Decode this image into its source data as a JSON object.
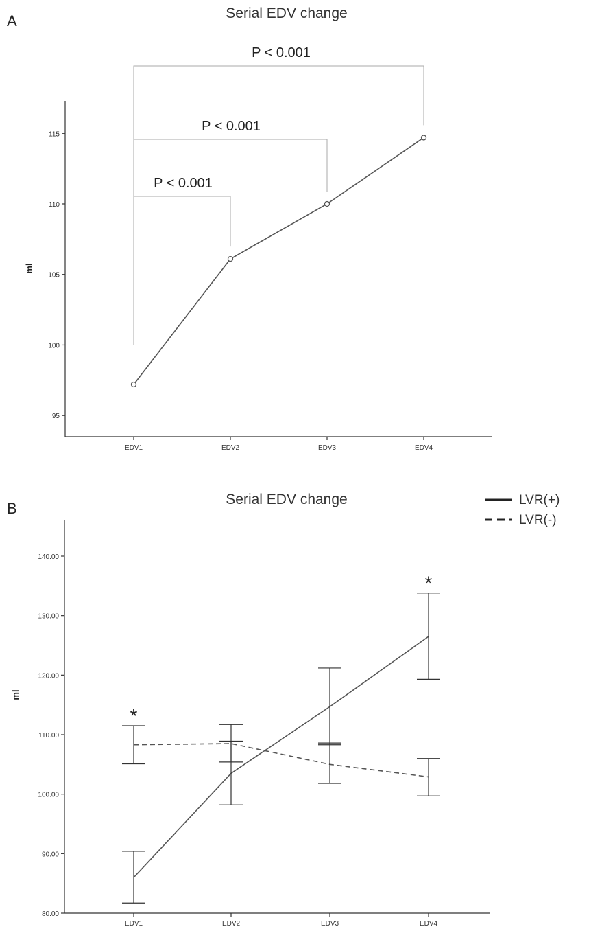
{
  "chart_data": [
    {
      "type": "line",
      "panel": "A",
      "title": "Serial EDV change",
      "ylabel": "ml",
      "xlabel": "",
      "categories": [
        "EDV1",
        "EDV2",
        "EDV3",
        "EDV4"
      ],
      "values": [
        97.2,
        106.1,
        110.0,
        114.7
      ],
      "ylim": [
        93.5,
        117.3
      ],
      "yticks": [
        "95",
        "100",
        "105",
        "110",
        "115"
      ],
      "ytick_values": [
        95,
        100,
        105,
        110,
        115
      ],
      "annotations": [
        {
          "text": "P < 0.001",
          "from": "EDV1",
          "to": "EDV2"
        },
        {
          "text": "P < 0.001",
          "from": "EDV1",
          "to": "EDV3"
        },
        {
          "text": "P < 0.001",
          "from": "EDV1",
          "to": "EDV4"
        }
      ],
      "grid": false,
      "colors": {
        "line": "#555555"
      }
    },
    {
      "type": "line",
      "panel": "B",
      "title": "Serial EDV change",
      "ylabel": "ml",
      "xlabel": "",
      "categories": [
        "EDV1",
        "EDV2",
        "EDV3",
        "EDV4"
      ],
      "series": [
        {
          "name": "LVR(+)",
          "style": "solid",
          "values": [
            86.0,
            103.5,
            114.7,
            126.5
          ],
          "lower": [
            81.7,
            98.2,
            108.3,
            119.3
          ],
          "upper": [
            90.4,
            108.9,
            121.2,
            133.8
          ]
        },
        {
          "name": "LVR(-)",
          "style": "dashed",
          "values": [
            108.3,
            108.5,
            105.0,
            102.9
          ],
          "lower": [
            105.1,
            105.4,
            101.8,
            99.7
          ],
          "upper": [
            111.5,
            111.7,
            108.6,
            106.0
          ]
        }
      ],
      "ylim": [
        80,
        146
      ],
      "yticks": [
        "80.00",
        "90.00",
        "100.00",
        "110.00",
        "120.00",
        "130.00",
        "140.00"
      ],
      "ytick_values": [
        80,
        90,
        100,
        110,
        120,
        130,
        140
      ],
      "significance_markers": [
        {
          "category": "EDV1",
          "text": "*"
        },
        {
          "category": "EDV4",
          "text": "*"
        }
      ],
      "legend": "top-right",
      "grid": false,
      "colors": {
        "line": "#555555"
      }
    }
  ],
  "labels": {
    "panel_a": "A",
    "panel_b": "B"
  }
}
